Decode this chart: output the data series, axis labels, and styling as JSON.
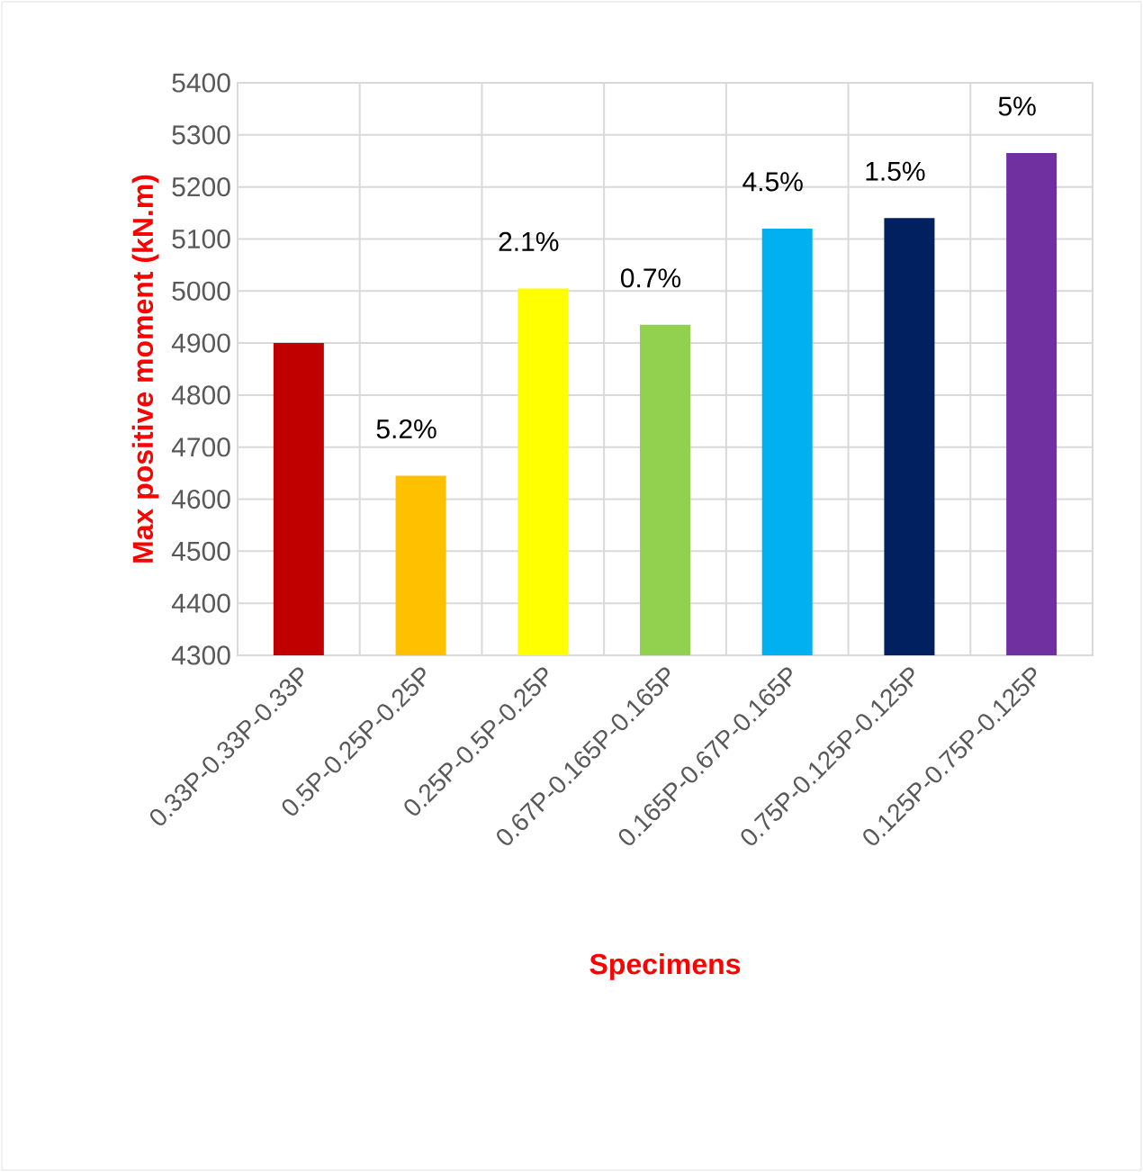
{
  "chart_data": {
    "type": "bar",
    "xlabel": "Specimens",
    "ylabel": "Max positive  moment  (kN.m)",
    "categories": [
      "0.33P-0.33P-0.33P",
      "0.5P-0.25P-0.25P",
      "0.25P-0.5P-0.25P",
      "0.67P-0.165P-0.165P",
      "0.165P-0.67P-0.165P",
      "0.75P-0.125P-0.125P",
      "0.125P-0.75P-0.125P"
    ],
    "values": [
      4900,
      4645,
      5005,
      4935,
      5120,
      5140,
      5265
    ],
    "colors": [
      "#c00000",
      "#ffc000",
      "#ffff00",
      "#92d050",
      "#00b0f0",
      "#002060",
      "#7030a0"
    ],
    "annotations": [
      "5.2%",
      "2.1%",
      "0.7%",
      "4.5%",
      "1.5%",
      "5%"
    ],
    "ylim": [
      4300,
      5400
    ],
    "yticks": [
      4300,
      4400,
      4500,
      4600,
      4700,
      4800,
      4900,
      5000,
      5100,
      5200,
      5300,
      5400
    ],
    "grid": true
  }
}
